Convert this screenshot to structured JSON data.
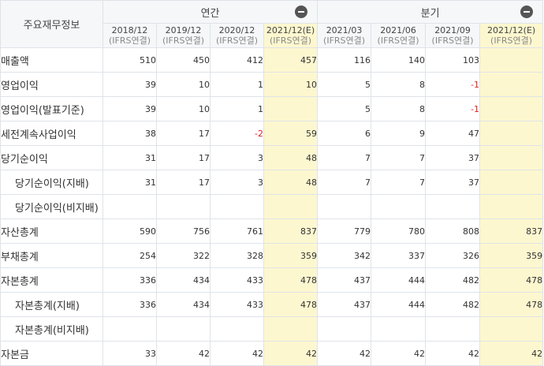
{
  "header": {
    "corner_label": "주요재무정보",
    "groups": [
      {
        "label": "연간",
        "toggle_icon": "collapse-minus-icon"
      },
      {
        "label": "분기",
        "toggle_icon": "collapse-minus-icon"
      }
    ],
    "periods": [
      {
        "date": "2018/12",
        "basis": "(IFRS연결)",
        "estimate": false
      },
      {
        "date": "2019/12",
        "basis": "(IFRS연결)",
        "estimate": false
      },
      {
        "date": "2020/12",
        "basis": "(IFRS연결)",
        "estimate": false
      },
      {
        "date": "2021/12(E)",
        "basis": "(IFRS연결)",
        "estimate": true
      },
      {
        "date": "2021/03",
        "basis": "(IFRS연결)",
        "estimate": false
      },
      {
        "date": "2021/06",
        "basis": "(IFRS연결)",
        "estimate": false
      },
      {
        "date": "2021/09",
        "basis": "(IFRS연결)",
        "estimate": false
      },
      {
        "date": "2021/12(E)",
        "basis": "(IFRS연결)",
        "estimate": true
      }
    ]
  },
  "rows": [
    {
      "label": "매출액",
      "indent": false,
      "values": [
        "510",
        "450",
        "412",
        "457",
        "116",
        "140",
        "103",
        ""
      ]
    },
    {
      "label": "영업이익",
      "indent": false,
      "values": [
        "39",
        "10",
        "1",
        "10",
        "5",
        "8",
        "-1",
        ""
      ]
    },
    {
      "label": "영업이익(발표기준)",
      "indent": false,
      "values": [
        "39",
        "10",
        "1",
        "",
        "5",
        "8",
        "-1",
        ""
      ]
    },
    {
      "label": "세전계속사업이익",
      "indent": false,
      "values": [
        "38",
        "17",
        "-2",
        "59",
        "6",
        "9",
        "47",
        ""
      ]
    },
    {
      "label": "당기순이익",
      "indent": false,
      "values": [
        "31",
        "17",
        "3",
        "48",
        "7",
        "7",
        "37",
        ""
      ]
    },
    {
      "label": "당기순이익(지배)",
      "indent": true,
      "values": [
        "31",
        "17",
        "3",
        "48",
        "7",
        "7",
        "37",
        ""
      ]
    },
    {
      "label": "당기순이익(비지배)",
      "indent": true,
      "values": [
        "",
        "",
        "",
        "",
        "",
        "",
        "",
        ""
      ]
    },
    {
      "label": "자산총계",
      "indent": false,
      "values": [
        "590",
        "756",
        "761",
        "837",
        "779",
        "780",
        "808",
        "837"
      ]
    },
    {
      "label": "부채총계",
      "indent": false,
      "values": [
        "254",
        "322",
        "328",
        "359",
        "342",
        "337",
        "326",
        "359"
      ]
    },
    {
      "label": "자본총계",
      "indent": false,
      "values": [
        "336",
        "434",
        "433",
        "478",
        "437",
        "444",
        "482",
        "478"
      ]
    },
    {
      "label": "자본총계(지배)",
      "indent": true,
      "values": [
        "336",
        "434",
        "433",
        "478",
        "437",
        "444",
        "482",
        "478"
      ]
    },
    {
      "label": "자본총계(비지배)",
      "indent": true,
      "values": [
        "",
        "",
        "",
        "",
        "",
        "",
        "",
        ""
      ]
    },
    {
      "label": "자본금",
      "indent": false,
      "values": [
        "33",
        "42",
        "42",
        "42",
        "42",
        "42",
        "42",
        "42"
      ]
    }
  ],
  "colors": {
    "estimate_bg": "#fdf7cf",
    "negative": "#e02020",
    "header_bg": "#f5f7f9",
    "border": "#dfe3e8"
  }
}
